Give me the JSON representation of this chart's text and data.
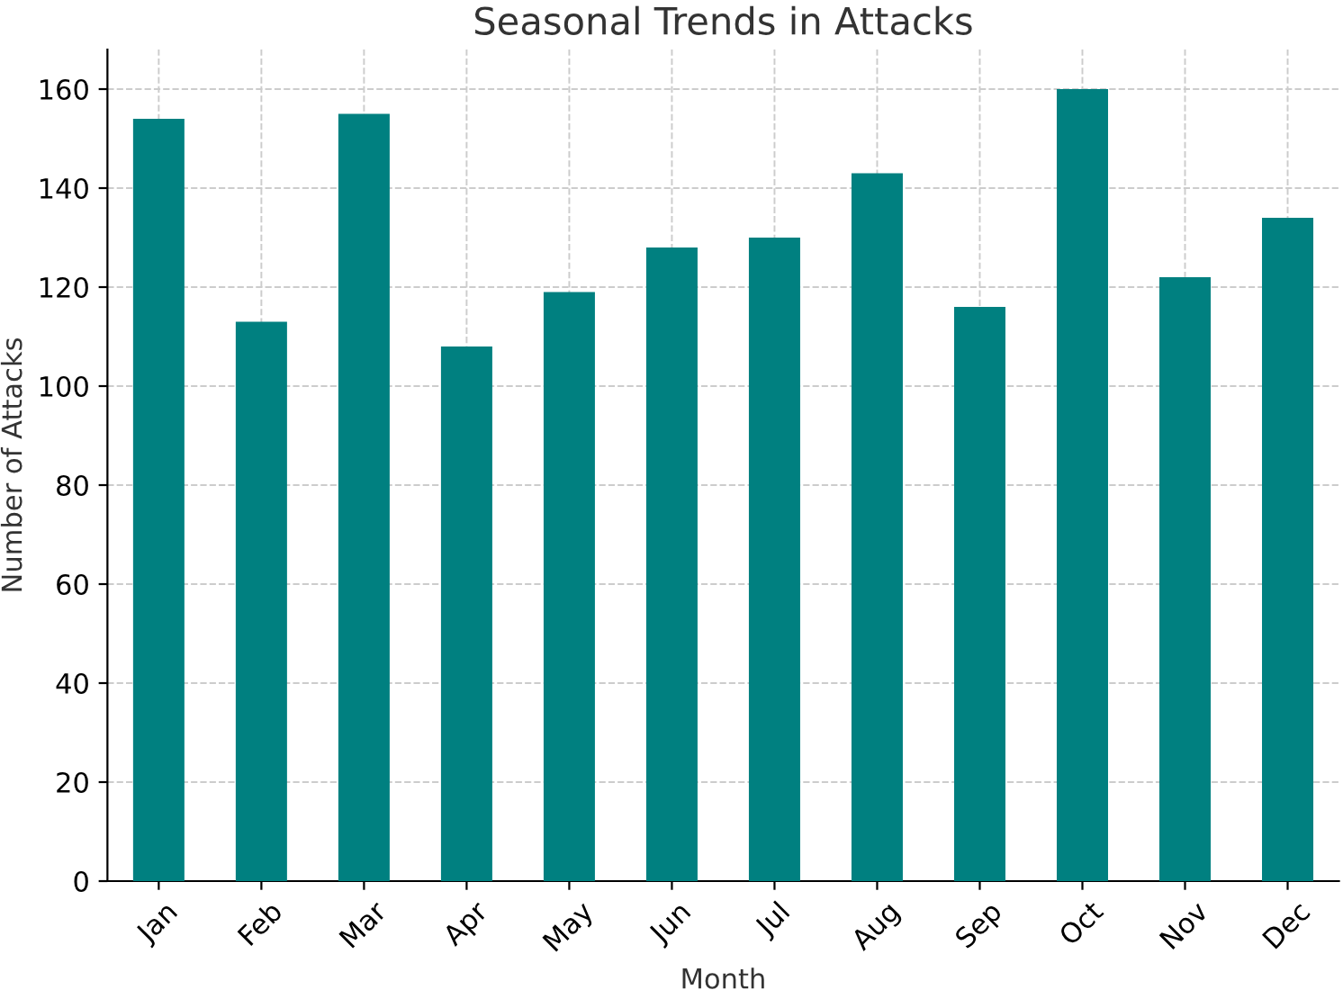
{
  "chart_data": {
    "type": "bar",
    "title": "Seasonal Trends in Attacks",
    "xlabel": "Month",
    "ylabel": "Number of Attacks",
    "categories": [
      "Jan",
      "Feb",
      "Mar",
      "Apr",
      "May",
      "Jun",
      "Jul",
      "Aug",
      "Sep",
      "Oct",
      "Nov",
      "Dec"
    ],
    "values": [
      154,
      113,
      155,
      108,
      119,
      128,
      130,
      143,
      116,
      160,
      122,
      134
    ],
    "color": "#008080",
    "ylim": [
      0,
      168
    ],
    "yticks": [
      0,
      20,
      40,
      60,
      80,
      100,
      120,
      140,
      160
    ],
    "grid": true
  }
}
